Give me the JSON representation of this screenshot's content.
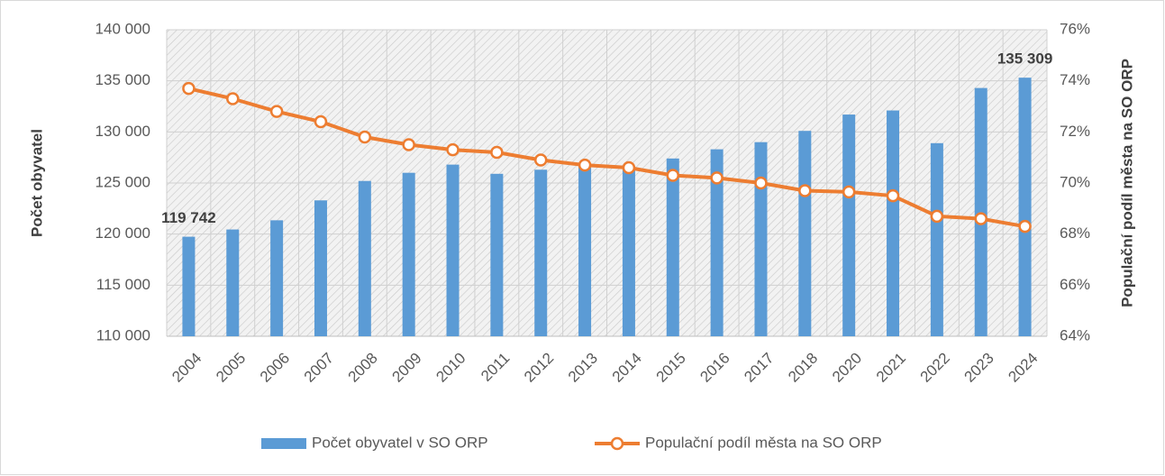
{
  "chart_data": {
    "type": "bar-line",
    "categories": [
      "2004",
      "2005",
      "2006",
      "2007",
      "2008",
      "2009",
      "2010",
      "2011",
      "2012",
      "2013",
      "2014",
      "2015",
      "2016",
      "2017",
      "2018",
      "2020",
      "2021",
      "2022",
      "2023",
      "2024"
    ],
    "series": [
      {
        "name": "Počet obyvatel v SO ORP",
        "color": "#5b9bd5",
        "type": "bar",
        "values": [
          119742,
          120450,
          121350,
          123300,
          125200,
          126000,
          126800,
          125900,
          126300,
          126900,
          126700,
          127400,
          128300,
          129000,
          130100,
          131700,
          132100,
          128900,
          134300,
          135309
        ],
        "value_labels": [
          "119 742",
          null,
          null,
          null,
          null,
          null,
          null,
          null,
          null,
          null,
          null,
          null,
          null,
          null,
          null,
          null,
          null,
          null,
          null,
          "135 309"
        ]
      },
      {
        "name": "Populační podíl města na SO ORP",
        "color": "#ed7d31",
        "type": "line",
        "axis": "y2",
        "values": [
          73.7,
          73.3,
          72.8,
          72.4,
          71.8,
          71.5,
          71.3,
          71.2,
          70.9,
          70.7,
          70.6,
          70.3,
          70.2,
          70.0,
          69.7,
          69.65,
          69.5,
          68.7,
          68.6,
          68.3
        ]
      }
    ],
    "ylabel": "Počet obyvatel",
    "y2label": "Populační podíl města na SO ORP",
    "ylim": [
      110000,
      140000
    ],
    "yticks": [
      {
        "value": 110000,
        "label": "110 000"
      },
      {
        "value": 115000,
        "label": "115 000"
      },
      {
        "value": 120000,
        "label": "120 000"
      },
      {
        "value": 125000,
        "label": "125 000"
      },
      {
        "value": 130000,
        "label": "130 000"
      },
      {
        "value": 135000,
        "label": "135 000"
      },
      {
        "value": 140000,
        "label": "140 000"
      }
    ],
    "y2lim": [
      64,
      76
    ],
    "y2ticks": [
      {
        "value": 64,
        "label": "64%"
      },
      {
        "value": 66,
        "label": "66%"
      },
      {
        "value": 68,
        "label": "68%"
      },
      {
        "value": 70,
        "label": "70%"
      },
      {
        "value": 72,
        "label": "72%"
      },
      {
        "value": 74,
        "label": "74%"
      },
      {
        "value": 76,
        "label": "76%"
      }
    ],
    "grid": true,
    "legend": "bottom"
  }
}
